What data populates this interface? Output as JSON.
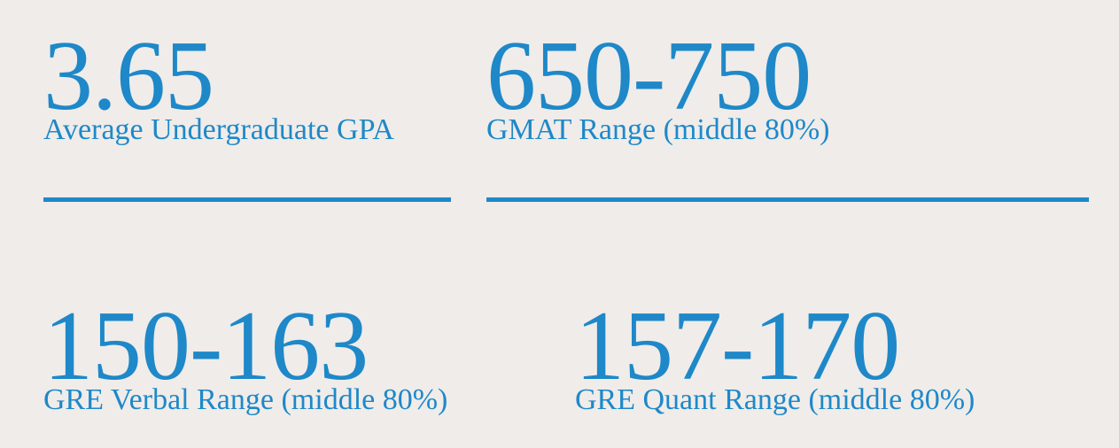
{
  "stats": [
    {
      "value": "3.65",
      "label": "Average Undergraduate GPA"
    },
    {
      "value": "650-750",
      "label": "GMAT Range (middle 80%)"
    },
    {
      "value": "150-163",
      "label": "GRE Verbal Range (middle 80%)"
    },
    {
      "value": "157-170",
      "label": "GRE Quant Range (middle 80%)"
    }
  ]
}
